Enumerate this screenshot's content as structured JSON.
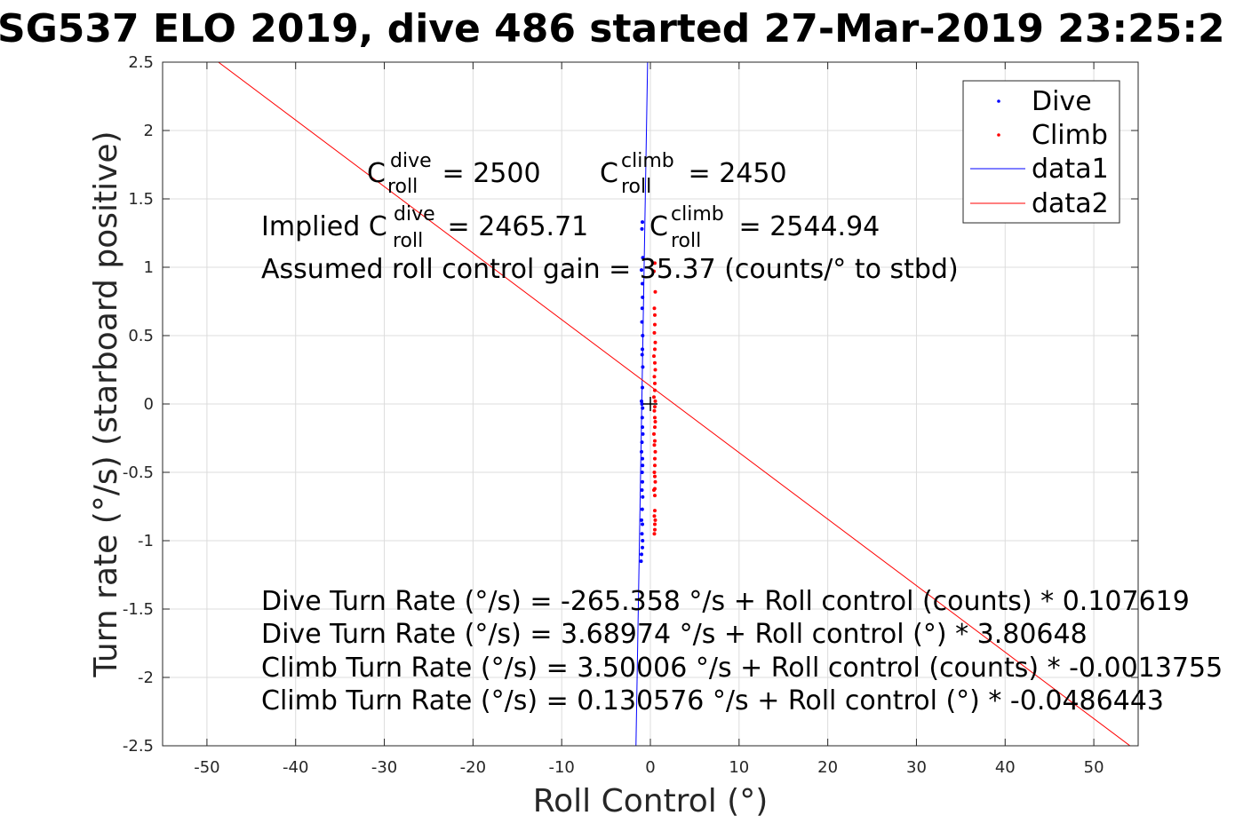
{
  "chart_data": {
    "type": "scatter",
    "title": "SG537 ELO 2019, dive 486 started 27-Mar-2019 23:25:2",
    "xlabel": "Roll Control (°)",
    "ylabel": "Turn rate (°/s) (starboard positive)",
    "xlim": [
      -55,
      55
    ],
    "ylim": [
      -2.5,
      2.5
    ],
    "xticks": [
      -50,
      -40,
      -30,
      -20,
      -10,
      0,
      10,
      20,
      30,
      40,
      50
    ],
    "yticks": [
      -2.5,
      -2,
      -1.5,
      -1,
      -0.5,
      0,
      0.5,
      1,
      1.5,
      2,
      2.5
    ],
    "grid": true,
    "legend_position": "top-right",
    "legend": [
      "Dive",
      "Climb",
      "data1",
      "data2"
    ],
    "colors": {
      "dive": "#0000ff",
      "climb": "#ff0000",
      "center_marker": "#000000",
      "grid": "#dcdcdc"
    },
    "series": [
      {
        "name": "Dive",
        "kind": "points",
        "color": "#0000ff",
        "x": [
          -0.9,
          -0.95,
          -0.85,
          -1.0,
          -0.9,
          -0.88,
          -0.92,
          -0.95,
          -0.87,
          -0.9,
          -0.93,
          -0.86,
          -0.9,
          -1.0,
          -0.95,
          -0.88,
          -0.92,
          -0.9,
          -0.85,
          -0.95,
          -1.0,
          -0.9,
          -0.88,
          -0.93,
          -0.9,
          -0.95,
          -0.87,
          -0.92,
          -1.0,
          -0.9,
          -0.95,
          -0.88,
          -0.9,
          -1.0,
          -1.05
        ],
        "y": [
          1.33,
          1.28,
          1.07,
          0.98,
          0.88,
          0.78,
          0.7,
          0.6,
          0.5,
          0.4,
          0.36,
          0.27,
          0.12,
          0.02,
          0.0,
          -0.03,
          -0.1,
          -0.17,
          -0.22,
          -0.28,
          -0.35,
          -0.4,
          -0.45,
          -0.5,
          -0.57,
          -0.63,
          -0.68,
          -0.77,
          -0.85,
          -0.88,
          -0.95,
          -1.0,
          -1.05,
          -1.1,
          -1.15
        ]
      },
      {
        "name": "Climb",
        "kind": "points",
        "color": "#ff0000",
        "x": [
          0.5,
          0.4,
          0.55,
          0.45,
          0.5,
          0.5,
          0.45,
          0.55,
          0.5,
          0.4,
          0.5,
          0.55,
          0.45,
          0.5,
          0.5,
          0.4,
          0.55,
          0.5,
          0.45,
          0.5,
          0.55,
          0.5,
          0.4,
          0.5,
          0.45,
          0.55,
          0.5,
          0.5,
          0.45,
          0.5,
          0.55,
          0.5,
          0.4,
          0.5,
          0.5,
          0.45,
          0.55,
          0.5,
          0.5,
          0.45
        ],
        "y": [
          1.03,
          0.97,
          0.82,
          0.7,
          0.65,
          0.58,
          0.52,
          0.45,
          0.4,
          0.35,
          0.3,
          0.25,
          0.2,
          0.15,
          0.1,
          0.05,
          0.02,
          -0.02,
          -0.05,
          -0.1,
          -0.13,
          -0.17,
          -0.22,
          -0.27,
          -0.3,
          -0.35,
          -0.4,
          -0.45,
          -0.5,
          -0.53,
          -0.57,
          -0.62,
          -0.63,
          -0.67,
          -0.78,
          -0.82,
          -0.85,
          -0.88,
          -0.92,
          -0.95
        ]
      },
      {
        "name": "data1",
        "kind": "line",
        "color": "#0000ff",
        "intercept": 3.68974,
        "slope": 3.80648
      },
      {
        "name": "data2",
        "kind": "line",
        "color": "#ff0000",
        "intercept": 0.130576,
        "slope": -0.0486443
      }
    ],
    "center_marker": {
      "x": 0,
      "y": 0
    },
    "annotations": {
      "c_dive": {
        "base": "C",
        "sup": "dive",
        "sub": "roll",
        "rest": " = 2500"
      },
      "c_climb": {
        "base": "C",
        "sup": "climb",
        "sub": "roll",
        "rest": " = 2450"
      },
      "implied_dive": {
        "prefix": "Implied C",
        "sup": "dive",
        "sub": "roll",
        "rest": " = 2465.71"
      },
      "implied_climb": {
        "base": "C",
        "sup": "climb",
        "sub": "roll",
        "rest": " = 2544.94"
      },
      "gain": "Assumed roll control gain = 35.37 (counts/° to stbd)",
      "eq1": "Dive Turn Rate (°/s) = -265.358 °/s + Roll control (counts) * 0.107619",
      "eq2": "Dive Turn Rate (°/s) = 3.68974 °/s + Roll control (°) * 3.80648",
      "eq3": "Climb Turn Rate (°/s) = 3.50006 °/s + Roll control (counts) * -0.0013755",
      "eq4": "Climb Turn Rate (°/s) = 0.130576 °/s + Roll control (°) * -0.0486443"
    }
  }
}
